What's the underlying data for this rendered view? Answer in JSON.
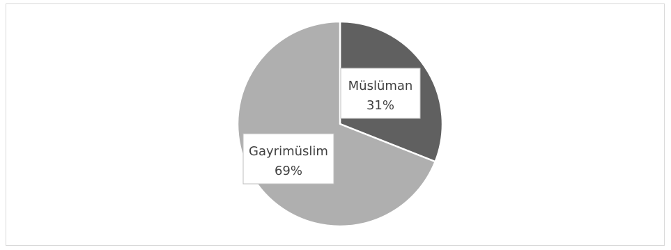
{
  "chart_data": {
    "type": "pie",
    "title": "",
    "slices": [
      {
        "category": "Müslüman",
        "value": 31,
        "label": "31%",
        "color": "#606060"
      },
      {
        "category": "Gayrimüslim",
        "value": 69,
        "label": "69%",
        "color": "#afafaf"
      }
    ],
    "legend": "none",
    "start_angle_deg": 0,
    "direction": "clockwise",
    "slice_border_color": "#ffffff"
  }
}
